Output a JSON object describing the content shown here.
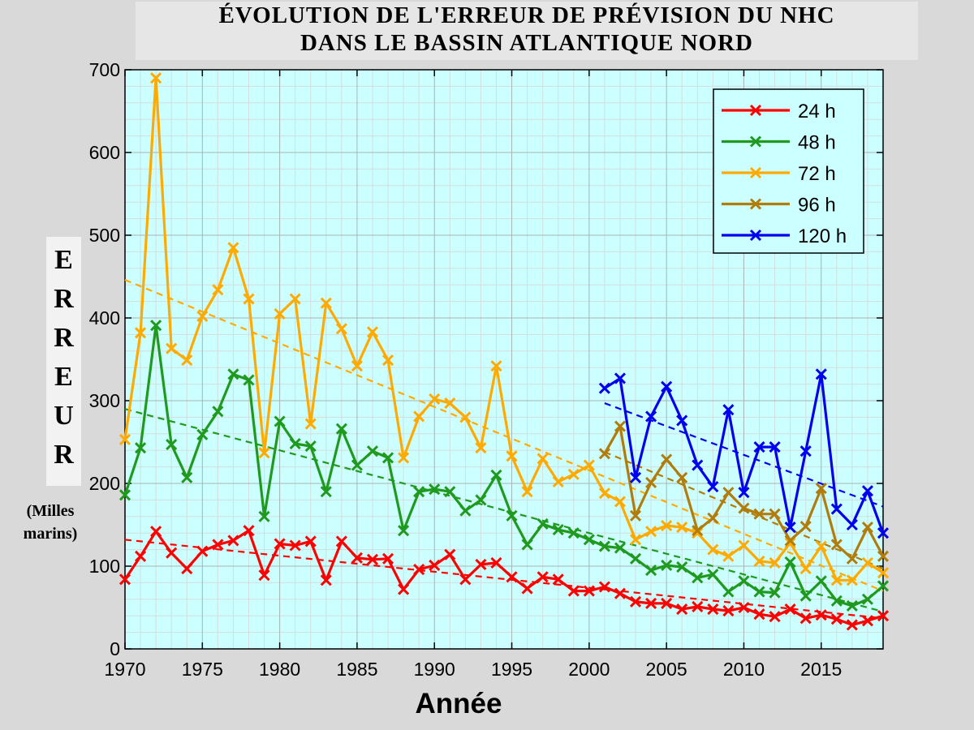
{
  "chart_data": {
    "type": "line",
    "title": [
      "ÉVOLUTION DE L'ERREUR DE PRÉVISION DU NHC",
      "DANS LE BASSIN ATLANTIQUE NORD"
    ],
    "xlabel": "Année",
    "ylabel_letters": [
      "E",
      "R",
      "R",
      "E",
      "U",
      "R"
    ],
    "yunits": [
      "(Milles",
      "marins)"
    ],
    "xlim": [
      1970,
      2019
    ],
    "ylim": [
      0,
      700
    ],
    "xticks": [
      1970,
      1975,
      1980,
      1985,
      1990,
      1995,
      2000,
      2005,
      2010,
      2015
    ],
    "yticks": [
      0,
      100,
      200,
      300,
      400,
      500,
      600,
      700
    ],
    "grid": true,
    "legend_position": "top-right",
    "series": [
      {
        "name": "24 h",
        "color": "#ff0000",
        "start": 1970,
        "values": [
          84,
          112,
          142,
          116,
          97,
          118,
          126,
          131,
          143,
          89,
          127,
          125,
          130,
          83,
          130,
          110,
          108,
          109,
          72,
          96,
          101,
          114,
          84,
          102,
          104,
          87,
          73,
          87,
          84,
          70,
          70,
          75,
          67,
          57,
          55,
          55,
          48,
          51,
          48,
          46,
          50,
          42,
          39,
          48,
          37,
          41,
          36,
          29,
          34,
          40
        ],
        "trend": [
          132,
          37
        ]
      },
      {
        "name": "48 h",
        "color": "#1f9a1f",
        "start": 1970,
        "values": [
          186,
          243,
          391,
          247,
          207,
          259,
          287,
          332,
          325,
          160,
          275,
          248,
          245,
          190,
          266,
          222,
          239,
          231,
          143,
          190,
          193,
          190,
          167,
          180,
          210,
          161,
          126,
          151,
          144,
          140,
          132,
          124,
          122,
          109,
          95,
          101,
          99,
          86,
          90,
          69,
          82,
          69,
          68,
          105,
          64,
          82,
          58,
          52,
          60,
          76
        ],
        "trend": [
          290,
          45
        ]
      },
      {
        "name": "72 h",
        "color": "#ffaa00",
        "start": 1970,
        "values": [
          253,
          382,
          690,
          363,
          349,
          402,
          434,
          485,
          423,
          237,
          405,
          423,
          272,
          418,
          387,
          342,
          383,
          349,
          231,
          281,
          302,
          297,
          280,
          243,
          342,
          233,
          190,
          230,
          202,
          211,
          222,
          188,
          178,
          132,
          142,
          149,
          147,
          140,
          120,
          112,
          125,
          106,
          104,
          128,
          97,
          124,
          83,
          83,
          104,
          92
        ],
        "trend": [
          446,
          70
        ]
      },
      {
        "name": "96 h",
        "color": "#b07d0c",
        "start": 2001,
        "values": [
          236,
          269,
          161,
          201,
          229,
          207,
          143,
          158,
          189,
          170,
          163,
          163,
          131,
          148,
          194,
          126,
          109,
          147,
          112
        ],
        "trend": [
          238,
          97
        ]
      },
      {
        "name": "120 h",
        "color": "#0000ee",
        "start": 2001,
        "values": [
          315,
          327,
          207,
          281,
          317,
          276,
          222,
          196,
          289,
          189,
          244,
          244,
          147,
          239,
          332,
          169,
          150,
          191,
          140
        ],
        "trend": [
          297,
          172
        ]
      }
    ]
  }
}
